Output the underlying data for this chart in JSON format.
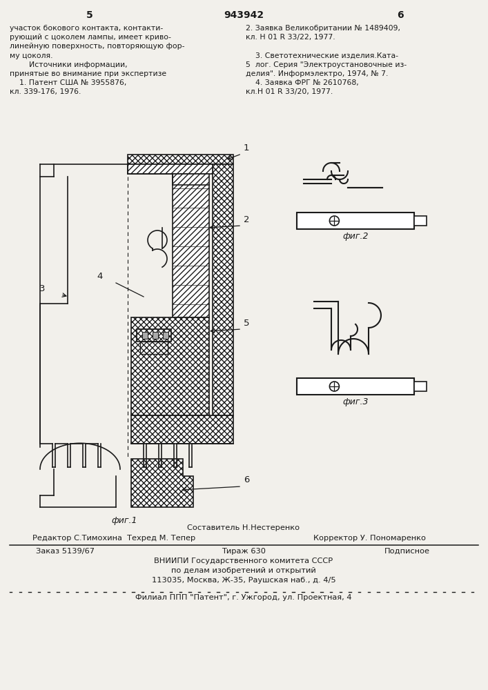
{
  "bg_color": "#f2f0eb",
  "page_number_left": "5",
  "page_number_center": "943942",
  "page_number_right": "6",
  "top_text_left": [
    "участок бокового контакта, контакти-",
    "рующий с цоколем лампы, имеет криво-",
    "линейную поверхность, повторяющую фор-",
    "му цоколя.",
    "        Источники информации,",
    "принятые во внимание при экспертизе",
    "    1. Патент США № 3955876,",
    "кл. 339-176, 1976."
  ],
  "top_text_right": [
    "2. Заявка Великобритании № 1489409,",
    "кл. Н 01 R 33/22, 1977.",
    "",
    "    3. Светотехнические изделия.Ката-",
    "5  лог. Серия \"Электроустановочные из-",
    "делия\". Информэлектро, 1974, № 7.",
    "    4. Заявка ФРГ № 2610768,",
    "кл.Н 01 R 33/20, 1977."
  ],
  "fig1_label": "фиг.1",
  "fig2_label": "фиг.2",
  "fig3_label": "фиг.3",
  "bottom_staff": "Составитель Н.Нестеренко",
  "bottom_editor": "Редактор С.Тимохина  Техред М. Тепер",
  "bottom_corrector": "Корректор У. Пономаренко",
  "bottom_order": "Заказ 5139/67",
  "bottom_tirazh": "Тираж 630",
  "bottom_podpisnoe": "Подписное",
  "bottom_vniipи": "ВНИИПИ Государственного комитета СССР",
  "bottom_po_delam": "по делам изобретений и открытий",
  "bottom_address": "113035, Москва, Ж-35, Раушская наб., д. 4/5",
  "bottom_filial": "Филиал ППП \"Патент\", г. Ужгород, ул. Проектная, 4",
  "line_color": "#1a1a1a",
  "text_color": "#1a1a1a"
}
